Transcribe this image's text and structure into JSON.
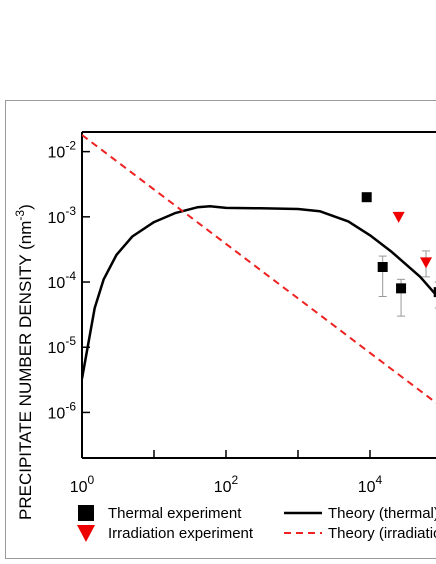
{
  "chart_data": {
    "type": "scatter",
    "title": "",
    "xlabel": "",
    "ylabel": "PRECIPITATE NUMBER DENSITY (nm",
    "ylabel_exp": "-3",
    "ylabel_close": ")",
    "x_scale": "log",
    "y_scale": "log",
    "xlim": [
      1,
      100000
    ],
    "ylim": [
      2e-07,
      0.02
    ],
    "grid": false,
    "x_ticks": [
      {
        "value": 1,
        "base": "10",
        "exp": "0"
      },
      {
        "value": 100,
        "base": "10",
        "exp": "2"
      },
      {
        "value": 10000,
        "base": "10",
        "exp": "4"
      }
    ],
    "y_ticks": [
      {
        "value": 0.01,
        "base": "10",
        "exp": "-2"
      },
      {
        "value": 0.001,
        "base": "10",
        "exp": "-3"
      },
      {
        "value": 0.0001,
        "base": "10",
        "exp": "-4"
      },
      {
        "value": 1e-05,
        "base": "10",
        "exp": "-5"
      },
      {
        "value": 1e-06,
        "base": "10",
        "exp": "-6"
      }
    ],
    "series": [
      {
        "name": "Thermal experiment",
        "kind": "marker",
        "marker": "square",
        "color": "#000000",
        "points": [
          {
            "x": 9000,
            "y": 0.002
          },
          {
            "x": 15000,
            "y": 0.00017,
            "err_low": 6e-05,
            "err_high": 0.00025
          },
          {
            "x": 27000,
            "y": 8e-05,
            "err_low": 3e-05,
            "err_high": 0.00011
          },
          {
            "x": 90000,
            "y": 7e-05,
            "err_low": 4e-05,
            "err_high": 0.0001
          }
        ]
      },
      {
        "name": "Irradiation experiment",
        "kind": "marker",
        "marker": "triangle-down",
        "color": "#ee0000",
        "points": [
          {
            "x": 25000,
            "y": 0.001
          },
          {
            "x": 60000,
            "y": 0.0002,
            "err_low": 0.00012,
            "err_high": 0.0003
          }
        ]
      },
      {
        "name": "Theory (thermal)",
        "kind": "line",
        "dash": "solid",
        "color": "#000000",
        "points": [
          {
            "x": 1,
            "y": 3.3e-06
          },
          {
            "x": 1.5,
            "y": 4e-05
          },
          {
            "x": 2,
            "y": 0.00011
          },
          {
            "x": 3,
            "y": 0.00026
          },
          {
            "x": 5,
            "y": 0.0005
          },
          {
            "x": 10,
            "y": 0.00083
          },
          {
            "x": 20,
            "y": 0.00115
          },
          {
            "x": 40,
            "y": 0.0014
          },
          {
            "x": 60,
            "y": 0.00145
          },
          {
            "x": 100,
            "y": 0.00137
          },
          {
            "x": 300,
            "y": 0.00135
          },
          {
            "x": 1000,
            "y": 0.00132
          },
          {
            "x": 2000,
            "y": 0.00122
          },
          {
            "x": 5000,
            "y": 0.00085
          },
          {
            "x": 10000,
            "y": 0.00052
          },
          {
            "x": 20000,
            "y": 0.00029
          },
          {
            "x": 50000,
            "y": 0.00012
          },
          {
            "x": 100000,
            "y": 5e-05
          }
        ]
      },
      {
        "name": "Theory (irradiation)",
        "kind": "line",
        "dash": "dashed",
        "color": "#ee2222",
        "points": [
          {
            "x": 1,
            "y": 0.018
          },
          {
            "x": 100000,
            "y": 1.2e-06
          }
        ]
      }
    ],
    "legend": {
      "placement": "bottom",
      "entries": [
        {
          "label": "Thermal experiment",
          "symbol": "square",
          "color": "#000000"
        },
        {
          "label": "Theory (thermal)",
          "symbol": "line-solid",
          "color": "#000000"
        },
        {
          "label": "Irradiation experiment",
          "symbol": "triangle-down",
          "color": "#ee0000"
        },
        {
          "label": "Theory (irradiation)",
          "symbol": "line-dashed",
          "color": "#ee2222"
        }
      ]
    }
  }
}
